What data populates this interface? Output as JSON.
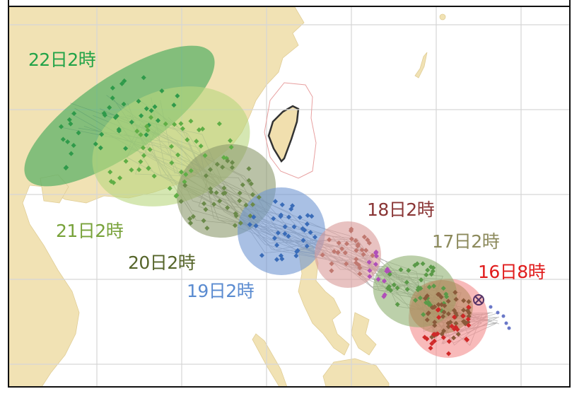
{
  "map": {
    "labels": [
      {
        "text": "22日2時",
        "color": "#22a348"
      },
      {
        "text": "21日2時",
        "color": "#78a23a"
      },
      {
        "text": "20日2時",
        "color": "#56652a"
      },
      {
        "text": "19日2時",
        "color": "#5a8bd0"
      },
      {
        "text": "18日2時",
        "color": "#8a3636"
      },
      {
        "text": "17日2時",
        "color": "#8c8a5c"
      },
      {
        "text": "16日8時",
        "color": "#e01b1b"
      }
    ],
    "current_position_icon": "storm-center-cross-circle-icon",
    "colors": {
      "land": "#f1e2b4",
      "sea": "#ffffff",
      "grid": "#d6d6d6",
      "d22": "#3aa655",
      "d21": "#b9d77e",
      "d20": "#8c9a6c",
      "d19": "#6f96d2",
      "d18": "#d89a98",
      "d17": "#8fb072",
      "d16": "#f48c8c"
    }
  }
}
